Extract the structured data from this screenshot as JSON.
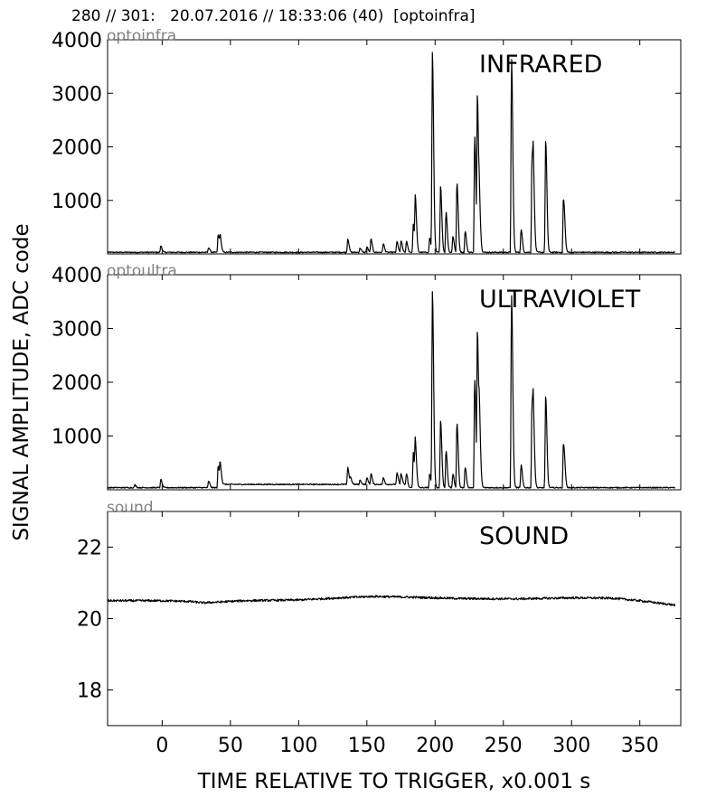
{
  "header": {
    "text": "280 // 301:   20.07.2016 // 18:33:06 (40)  [optoinfra]"
  },
  "ylabel": "SIGNAL AMPLITUDE,  ADC code",
  "xlabel": "TIME RELATIVE TO TRIGGER,   x0.001 s",
  "colors": {
    "trace": "#000000",
    "channel_label": "#808080",
    "axes": "#000000"
  },
  "x_ticks": [
    0,
    50,
    100,
    150,
    200,
    250,
    300,
    350
  ],
  "chart_data": [
    {
      "type": "line",
      "channel": "optoinfra",
      "title": "INFRARED",
      "xlim": [
        -40,
        380
      ],
      "ylim": [
        0,
        4000
      ],
      "yticks": [
        1000,
        2000,
        3000,
        4000
      ],
      "baseline": 30,
      "noise": 10,
      "peaks": [
        {
          "t": -1,
          "a": 120
        },
        {
          "t": 34,
          "a": 90
        },
        {
          "t": 41,
          "a": 330
        },
        {
          "t": 42.5,
          "a": 260
        },
        {
          "t": 136,
          "a": 250
        },
        {
          "t": 145,
          "a": 80
        },
        {
          "t": 150,
          "a": 100
        },
        {
          "t": 153,
          "a": 250
        },
        {
          "t": 162,
          "a": 160
        },
        {
          "t": 172,
          "a": 200
        },
        {
          "t": 175,
          "a": 210
        },
        {
          "t": 179,
          "a": 200
        },
        {
          "t": 184,
          "a": 530
        },
        {
          "t": 185.5,
          "a": 950
        },
        {
          "t": 196,
          "a": 270
        },
        {
          "t": 198,
          "a": 3700
        },
        {
          "t": 204,
          "a": 1230
        },
        {
          "t": 208,
          "a": 750
        },
        {
          "t": 213,
          "a": 300
        },
        {
          "t": 216,
          "a": 1300
        },
        {
          "t": 222,
          "a": 400
        },
        {
          "t": 229,
          "a": 2180
        },
        {
          "t": 231,
          "a": 2800
        },
        {
          "t": 232.5,
          "a": 640
        },
        {
          "t": 256,
          "a": 3620
        },
        {
          "t": 263,
          "a": 430
        },
        {
          "t": 271,
          "a": 1840
        },
        {
          "t": 272,
          "a": 980
        },
        {
          "t": 281,
          "a": 2090
        },
        {
          "t": 294,
          "a": 1000
        },
        {
          "t": 295,
          "a": 130
        }
      ],
      "bumps": []
    },
    {
      "type": "line",
      "channel": "optoultra",
      "title": "ULTRAVIOLET",
      "xlim": [
        -40,
        380
      ],
      "ylim": [
        0,
        4000
      ],
      "yticks": [
        1000,
        2000,
        3000,
        4000
      ],
      "baseline": 40,
      "noise": 10,
      "peaks": [
        {
          "t": -20,
          "a": 50
        },
        {
          "t": -1,
          "a": 150
        },
        {
          "t": 34,
          "a": 120
        },
        {
          "t": 41,
          "a": 400
        },
        {
          "t": 42.5,
          "a": 340
        },
        {
          "t": 136,
          "a": 310
        },
        {
          "t": 138,
          "a": 120
        },
        {
          "t": 145,
          "a": 80
        },
        {
          "t": 150,
          "a": 120
        },
        {
          "t": 153,
          "a": 200
        },
        {
          "t": 162,
          "a": 120
        },
        {
          "t": 172,
          "a": 210
        },
        {
          "t": 175,
          "a": 200
        },
        {
          "t": 179,
          "a": 190
        },
        {
          "t": 184,
          "a": 650
        },
        {
          "t": 185.5,
          "a": 780
        },
        {
          "t": 196,
          "a": 250
        },
        {
          "t": 198,
          "a": 3620
        },
        {
          "t": 204,
          "a": 1250
        },
        {
          "t": 208,
          "a": 690
        },
        {
          "t": 213,
          "a": 250
        },
        {
          "t": 216,
          "a": 1200
        },
        {
          "t": 222,
          "a": 380
        },
        {
          "t": 229,
          "a": 2030
        },
        {
          "t": 231,
          "a": 2790
        },
        {
          "t": 232.5,
          "a": 1000
        },
        {
          "t": 256,
          "a": 3600
        },
        {
          "t": 263,
          "a": 420
        },
        {
          "t": 271,
          "a": 1620
        },
        {
          "t": 272,
          "a": 880
        },
        {
          "t": 281,
          "a": 1700
        },
        {
          "t": 294,
          "a": 820
        },
        {
          "t": 295,
          "a": 120
        }
      ],
      "bumps": [
        {
          "t0": 42,
          "t1": 180,
          "a": 60
        }
      ]
    },
    {
      "type": "line",
      "channel": "sound",
      "title": "SOUND",
      "xlim": [
        -40,
        380
      ],
      "ylim": [
        17,
        23
      ],
      "yticks": [
        18,
        20,
        22
      ],
      "profile": [
        [
          -40,
          20.5
        ],
        [
          0,
          20.5
        ],
        [
          20,
          20.48
        ],
        [
          30,
          20.44
        ],
        [
          60,
          20.5
        ],
        [
          100,
          20.52
        ],
        [
          130,
          20.58
        ],
        [
          155,
          20.62
        ],
        [
          180,
          20.6
        ],
        [
          220,
          20.56
        ],
        [
          260,
          20.55
        ],
        [
          300,
          20.58
        ],
        [
          330,
          20.57
        ],
        [
          350,
          20.5
        ],
        [
          375,
          20.38
        ]
      ],
      "noise": 0.03
    }
  ]
}
